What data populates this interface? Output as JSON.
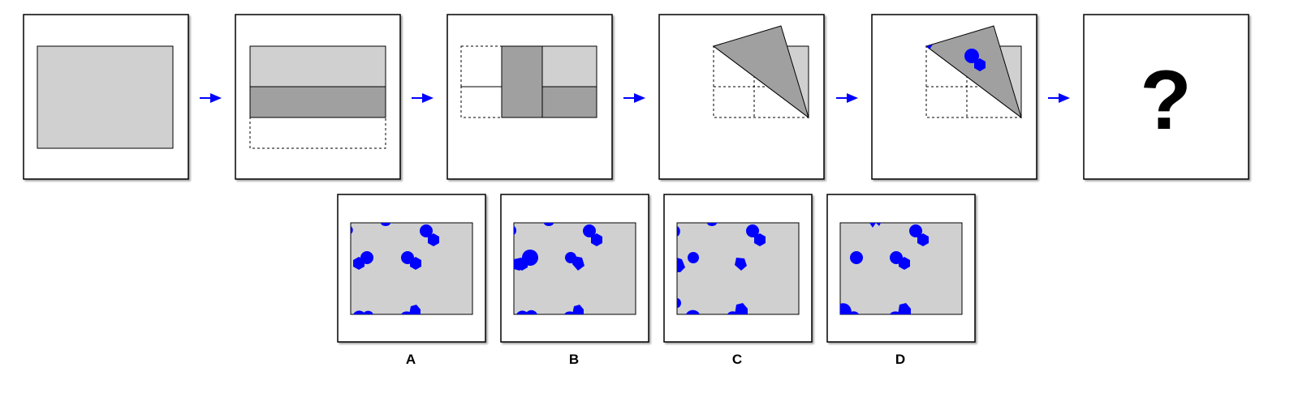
{
  "puzzle": {
    "question_mark": "?",
    "options": [
      {
        "letter": "A"
      },
      {
        "letter": "B"
      },
      {
        "letter": "C"
      },
      {
        "letter": "D"
      }
    ]
  },
  "colors": {
    "paper": "#d0d0d0",
    "folded": "#a0a0a0",
    "hole": "#0000ff",
    "arrow": "#0000ff",
    "frame": "#000000"
  }
}
